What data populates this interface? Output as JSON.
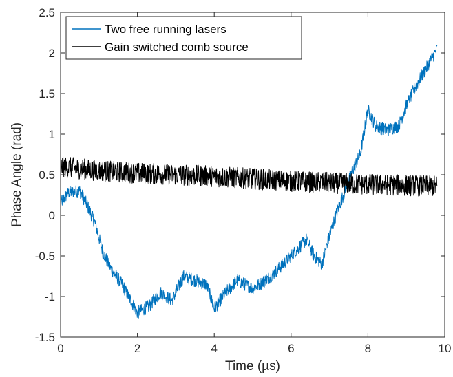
{
  "chart_data": {
    "type": "line",
    "xlabel": "Time (µs)",
    "ylabel": "Phase Angle (rad)",
    "xlim": [
      0,
      10
    ],
    "ylim": [
      -1.5,
      2.5
    ],
    "xticks": [
      "0",
      "2",
      "4",
      "6",
      "8",
      "10"
    ],
    "yticks": [
      "-1.5",
      "-1",
      "-0.5",
      "0",
      "0.5",
      "1",
      "1.5",
      "2",
      "2.5"
    ],
    "grid": false,
    "legend_position": "top-left",
    "series": [
      {
        "name": "Two free running lasers",
        "color": "#0072BD",
        "noise": 0.08,
        "x": [
          0,
          0.2,
          0.5,
          0.7,
          0.9,
          1.1,
          1.3,
          1.6,
          2.0,
          2.3,
          2.6,
          2.9,
          3.2,
          3.5,
          3.8,
          4.0,
          4.3,
          4.6,
          5.0,
          5.4,
          5.8,
          6.1,
          6.4,
          6.6,
          6.8,
          7.0,
          7.2,
          7.4,
          7.6,
          7.8,
          8.0,
          8.2,
          8.5,
          8.8,
          9.0,
          9.2,
          9.5,
          9.8
        ],
        "values": [
          0.15,
          0.28,
          0.3,
          0.12,
          -0.1,
          -0.45,
          -0.65,
          -0.85,
          -1.2,
          -1.12,
          -0.95,
          -1.05,
          -0.75,
          -0.8,
          -0.85,
          -1.15,
          -0.95,
          -0.8,
          -0.9,
          -0.78,
          -0.6,
          -0.45,
          -0.3,
          -0.5,
          -0.6,
          -0.25,
          0.05,
          0.3,
          0.55,
          0.75,
          1.3,
          1.1,
          1.05,
          1.1,
          1.35,
          1.55,
          1.8,
          2.05
        ]
      },
      {
        "name": "Gain switched comb source",
        "color": "#000000",
        "noise": 0.13,
        "x": [
          0,
          1,
          2,
          3,
          4,
          5,
          6,
          7,
          8,
          9,
          9.8
        ],
        "values": [
          0.6,
          0.55,
          0.52,
          0.5,
          0.48,
          0.45,
          0.42,
          0.4,
          0.38,
          0.37,
          0.36
        ]
      }
    ]
  }
}
